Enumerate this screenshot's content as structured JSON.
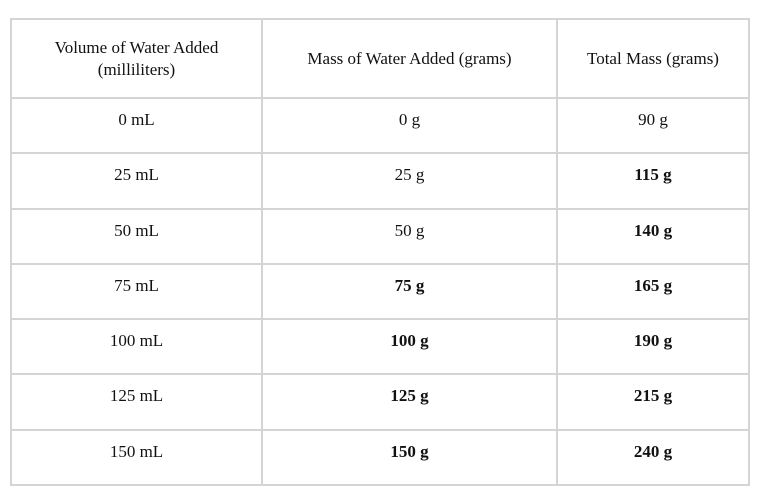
{
  "table": {
    "headers": [
      "Volume of Water Added (milliliters)",
      "Mass of Water Added (grams)",
      "Total Mass (grams)"
    ],
    "rows": [
      {
        "volume": "0 mL",
        "mass": "0 g",
        "total": "90 g"
      },
      {
        "volume": "25 mL",
        "mass": "25 g",
        "total": "115 g"
      },
      {
        "volume": "50 mL",
        "mass": "50 g",
        "total": "140 g"
      },
      {
        "volume": "75 mL",
        "mass": "75 g",
        "total": "165 g"
      },
      {
        "volume": "100 mL",
        "mass": "100 g",
        "total": "190 g"
      },
      {
        "volume": "125 mL",
        "mass": "125 g",
        "total": "215 g"
      },
      {
        "volume": "150 mL",
        "mass": "150 g",
        "total": "240 g"
      }
    ]
  }
}
